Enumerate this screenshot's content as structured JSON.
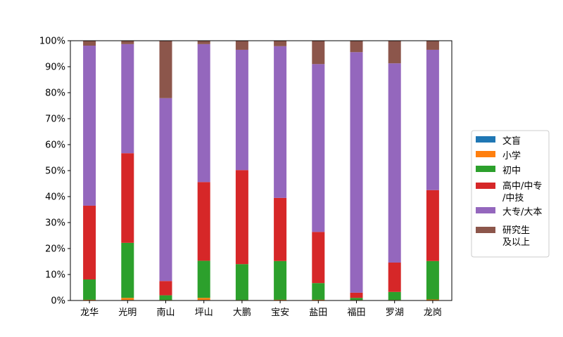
{
  "chart_data": {
    "type": "bar",
    "stacked": true,
    "categories": [
      "龙华",
      "光明",
      "南山",
      "坪山",
      "大鹏",
      "宝安",
      "盐田",
      "福田",
      "罗湖",
      "龙岗"
    ],
    "ylim": [
      0,
      100
    ],
    "yticks": [
      "0%",
      "10%",
      "20%",
      "30%",
      "40%",
      "50%",
      "60%",
      "70%",
      "80%",
      "90%",
      "100%"
    ],
    "ytick_values": [
      0,
      10,
      20,
      30,
      40,
      50,
      60,
      70,
      80,
      90,
      100
    ],
    "grid": false,
    "legend_position": "right",
    "series": [
      {
        "name": "文盲",
        "color": "#1f77b4",
        "values": [
          0.1,
          0.2,
          0.1,
          0.2,
          0.1,
          0.1,
          0.1,
          0.1,
          0.1,
          0.1
        ]
      },
      {
        "name": "小学",
        "color": "#ff7f0e",
        "values": [
          0.2,
          0.8,
          0.1,
          0.8,
          0.1,
          0.2,
          0.2,
          0.1,
          0.1,
          0.3
        ]
      },
      {
        "name": "初中",
        "color": "#2ca02c",
        "values": [
          7.8,
          21.2,
          1.8,
          14.3,
          13.8,
          14.9,
          6.4,
          0.8,
          3.1,
          14.8
        ]
      },
      {
        "name": "高中/中专/中技",
        "color": "#d62728",
        "values": [
          28.4,
          34.5,
          5.5,
          30.3,
          36.2,
          24.3,
          19.7,
          2.0,
          11.3,
          27.3
        ]
      },
      {
        "name": "大专/大本",
        "color": "#9467bd",
        "values": [
          61.6,
          42.0,
          70.4,
          53.1,
          46.3,
          58.4,
          64.6,
          92.6,
          76.7,
          54.0
        ]
      },
      {
        "name": "研究生及以上",
        "color": "#8c564b",
        "values": [
          1.9,
          1.3,
          22.1,
          1.3,
          3.5,
          2.1,
          9.0,
          4.4,
          8.7,
          3.5
        ]
      }
    ],
    "legend_lines": [
      [
        "文盲"
      ],
      [
        "小学"
      ],
      [
        "初中"
      ],
      [
        "高中/中专",
        "/中技"
      ],
      [
        "大专/大本"
      ],
      [
        "研究生",
        "及以上"
      ]
    ]
  }
}
